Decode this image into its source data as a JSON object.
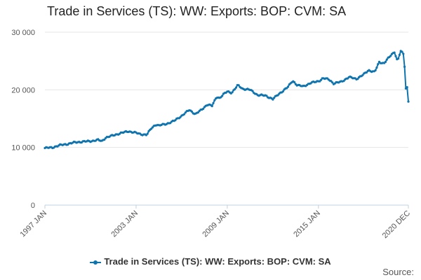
{
  "chart_data": {
    "type": "line",
    "title": "Trade in Services (TS): WW: Exports: BOP: CVM: SA",
    "xlabel": "",
    "ylabel": "",
    "ylim": [
      0,
      30000
    ],
    "y_ticks": [
      0,
      10000,
      20000,
      30000
    ],
    "y_tick_labels": [
      "0",
      "10 000",
      "20 000",
      "30 000"
    ],
    "x_ticks": [
      {
        "label": "1997 JAN",
        "t": 1997.0
      },
      {
        "label": "2003 JAN",
        "t": 2003.0
      },
      {
        "label": "2009 JAN",
        "t": 2009.0
      },
      {
        "label": "2015 JAN",
        "t": 2015.0
      },
      {
        "label": "2020 DEC",
        "t": 2020.9167
      }
    ],
    "x_range": [
      1997.0,
      2020.9167
    ],
    "series": [
      {
        "name": "Trade in Services (TS): WW: Exports: BOP: CVM: SA",
        "color": "#0f74ae",
        "anchors": [
          [
            1997.0,
            9900
          ],
          [
            1997.5,
            10000
          ],
          [
            1998.0,
            10400
          ],
          [
            1998.5,
            10600
          ],
          [
            1999.0,
            10900
          ],
          [
            1999.5,
            11000
          ],
          [
            2000.0,
            11100
          ],
          [
            2000.5,
            11300
          ],
          [
            2000.75,
            11100
          ],
          [
            2001.0,
            11700
          ],
          [
            2001.5,
            12100
          ],
          [
            2002.0,
            12500
          ],
          [
            2002.5,
            12800
          ],
          [
            2002.9,
            12600
          ],
          [
            2003.3,
            12300
          ],
          [
            2003.7,
            12200
          ],
          [
            2004.0,
            13300
          ],
          [
            2004.3,
            14000
          ],
          [
            2004.5,
            13800
          ],
          [
            2005.0,
            14100
          ],
          [
            2005.5,
            14600
          ],
          [
            2006.0,
            15500
          ],
          [
            2006.5,
            16500
          ],
          [
            2006.9,
            15800
          ],
          [
            2007.3,
            16500
          ],
          [
            2007.7,
            17500
          ],
          [
            2008.0,
            17200
          ],
          [
            2008.3,
            18800
          ],
          [
            2008.5,
            18600
          ],
          [
            2008.75,
            19200
          ],
          [
            2009.0,
            19700
          ],
          [
            2009.3,
            19500
          ],
          [
            2009.7,
            20800
          ],
          [
            2010.0,
            20200
          ],
          [
            2010.5,
            20000
          ],
          [
            2011.0,
            19100
          ],
          [
            2011.5,
            19000
          ],
          [
            2012.0,
            18400
          ],
          [
            2012.5,
            19500
          ],
          [
            2013.0,
            20500
          ],
          [
            2013.3,
            21600
          ],
          [
            2013.6,
            20800
          ],
          [
            2014.0,
            20600
          ],
          [
            2014.5,
            21200
          ],
          [
            2015.0,
            21500
          ],
          [
            2015.3,
            22000
          ],
          [
            2015.7,
            21800
          ],
          [
            2016.0,
            21100
          ],
          [
            2016.5,
            21400
          ],
          [
            2017.0,
            22200
          ],
          [
            2017.5,
            21900
          ],
          [
            2018.0,
            22700
          ],
          [
            2018.3,
            23400
          ],
          [
            2018.7,
            23100
          ],
          [
            2019.0,
            24800
          ],
          [
            2019.3,
            24600
          ],
          [
            2019.6,
            25500
          ],
          [
            2020.0,
            26600
          ],
          [
            2020.2,
            25000
          ],
          [
            2020.4,
            26700
          ],
          [
            2020.6,
            26200
          ],
          [
            2020.7,
            23000
          ],
          [
            2020.75,
            20200
          ],
          [
            2020.85,
            20500
          ],
          [
            2020.9167,
            18100
          ]
        ]
      }
    ]
  },
  "legend": {
    "label": "Trade in Services (TS): WW: Exports: BOP: CVM: SA"
  },
  "source": {
    "label": "Source:"
  }
}
